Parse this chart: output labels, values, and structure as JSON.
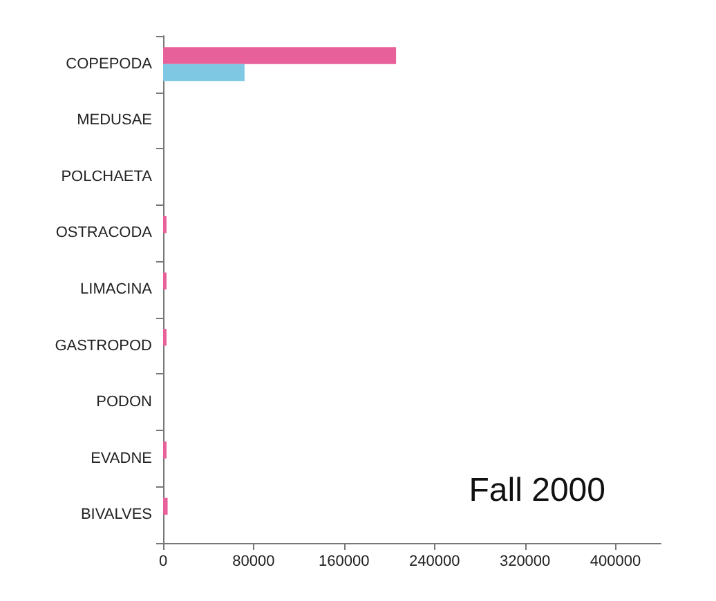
{
  "chart_data": {
    "type": "bar",
    "orientation": "horizontal",
    "annotations": [
      "Fall 2000"
    ],
    "categories": [
      "COPEPODA",
      "MEDUSAE",
      "POLCHAETA",
      "OSTRACODA",
      "LIMACINA",
      "GASTROPOD",
      "PODON",
      "EVADNE",
      "BIVALVES"
    ],
    "series": [
      {
        "color": "#e8609a",
        "values": [
          206000,
          0,
          0,
          3000,
          3000,
          3000,
          0,
          3000,
          4000
        ]
      },
      {
        "color": "#7ec8e3",
        "values": [
          72000,
          0,
          0,
          0,
          0,
          0,
          0,
          0,
          0
        ]
      }
    ],
    "xlim": [
      0,
      440000
    ],
    "xticks": [
      0,
      80000,
      160000,
      240000,
      320000,
      400000
    ],
    "grid": false
  }
}
